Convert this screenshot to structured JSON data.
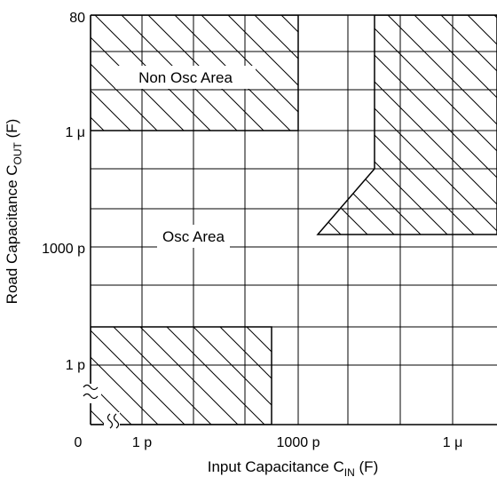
{
  "chart_data": {
    "type": "region-map",
    "title": "",
    "xlabel": {
      "main": "Input Capacitance C",
      "sub": "IN",
      "unit": " (F)"
    },
    "ylabel": {
      "main": "Road Capacitance C",
      "sub": "OUT",
      "unit": " (F)"
    },
    "x_scale": "log",
    "y_scale": "log",
    "x_range": [
      "0",
      "1 μ"
    ],
    "y_range": [
      "0",
      "80"
    ],
    "x_ticks": [
      "0",
      "1 p",
      "1000 p",
      "1 μ"
    ],
    "y_ticks": [
      "80",
      "1 μ",
      "1000 p",
      "1 p"
    ],
    "axis_breaks": [
      "x",
      "y"
    ],
    "grid": true,
    "regions": [
      {
        "name": "Non Osc Area",
        "hatched": true,
        "label": "Non Osc Area"
      },
      {
        "name": "Osc Area",
        "hatched": false,
        "label": "Osc Area"
      },
      {
        "name": "lower-left non-oscillation region",
        "hatched": true,
        "label": ""
      },
      {
        "name": "upper-right non-oscillation region",
        "hatched": true,
        "label": ""
      }
    ]
  }
}
